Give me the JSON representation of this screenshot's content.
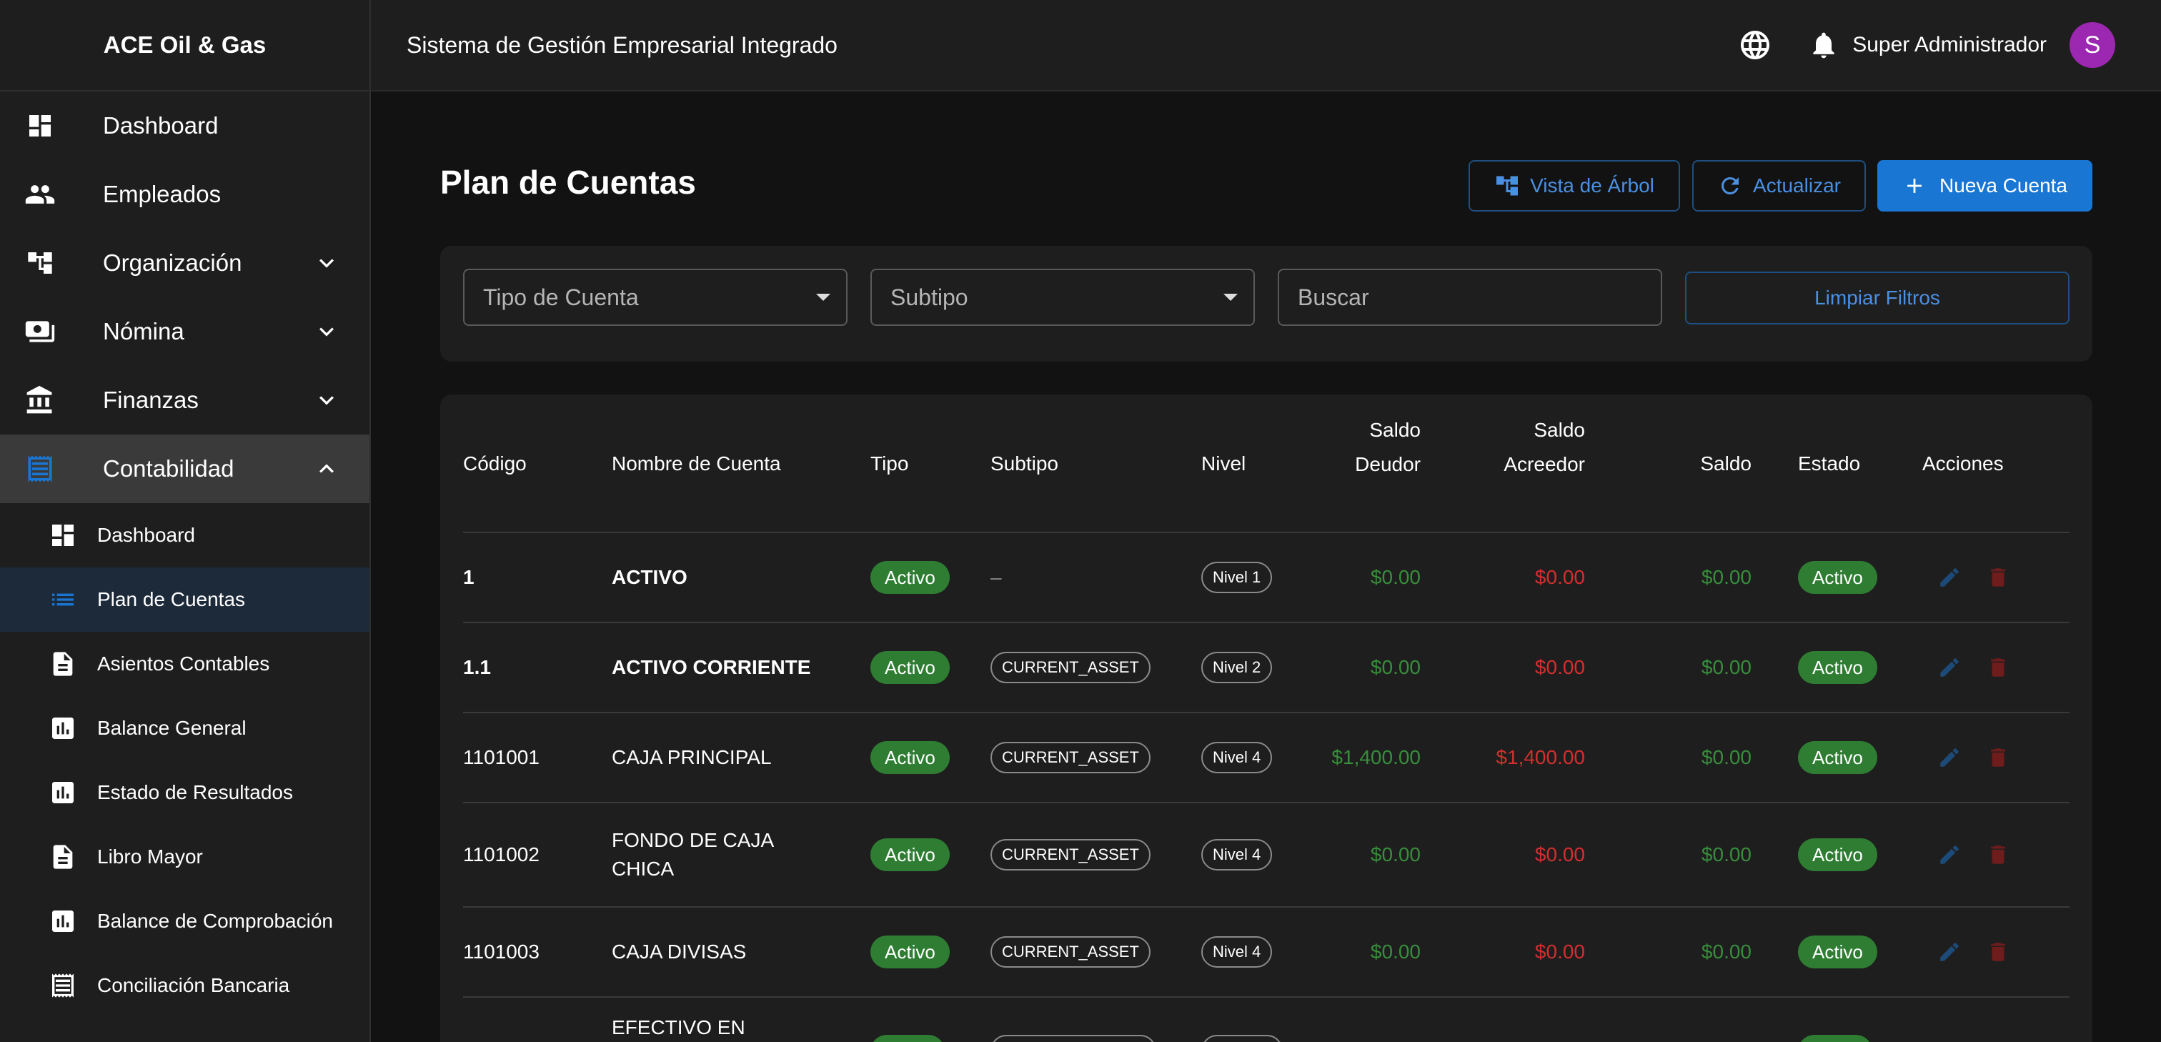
{
  "sidebar": {
    "brand": "ACE Oil & Gas",
    "items": [
      {
        "label": "Dashboard"
      },
      {
        "label": "Empleados"
      },
      {
        "label": "Organización"
      },
      {
        "label": "Nómina"
      },
      {
        "label": "Finanzas"
      },
      {
        "label": "Contabilidad"
      }
    ],
    "subitems": [
      {
        "label": "Dashboard"
      },
      {
        "label": "Plan de Cuentas"
      },
      {
        "label": "Asientos Contables"
      },
      {
        "label": "Balance General"
      },
      {
        "label": "Estado de Resultados"
      },
      {
        "label": "Libro Mayor"
      },
      {
        "label": "Balance de Comprobación"
      },
      {
        "label": "Conciliación Bancaria"
      }
    ]
  },
  "header": {
    "system_title": "Sistema de Gestión Empresarial Integrado",
    "user_name": "Super Administrador",
    "avatar_letter": "S"
  },
  "page": {
    "title": "Plan de Cuentas",
    "buttons": {
      "tree_view": "Vista de Árbol",
      "refresh": "Actualizar",
      "new_account": "Nueva Cuenta"
    }
  },
  "filters": {
    "account_type": "Tipo de Cuenta",
    "subtype": "Subtipo",
    "search": "Buscar",
    "clear": "Limpiar Filtros"
  },
  "table": {
    "headers": {
      "code": "Código",
      "name": "Nombre de Cuenta",
      "type": "Tipo",
      "subtype": "Subtipo",
      "level": "Nivel",
      "debit_1": "Saldo",
      "debit_2": "Deudor",
      "credit_1": "Saldo",
      "credit_2": "Acreedor",
      "balance": "Saldo",
      "status": "Estado",
      "actions": "Acciones"
    },
    "rows": [
      {
        "code": "1",
        "name_1": "ACTIVO",
        "name_2": "",
        "type": "Activo",
        "subtype": "–",
        "level": "Nivel 1",
        "debit": "$0.00",
        "credit": "$0.00",
        "balance": "$0.00",
        "status": "Activo"
      },
      {
        "code": "1.1",
        "name_1": "ACTIVO CORRIENTE",
        "name_2": "",
        "type": "Activo",
        "subtype": "CURRENT_ASSET",
        "level": "Nivel 2",
        "debit": "$0.00",
        "credit": "$0.00",
        "balance": "$0.00",
        "status": "Activo"
      },
      {
        "code": "1101001",
        "name_1": "CAJA PRINCIPAL",
        "name_2": "",
        "type": "Activo",
        "subtype": "CURRENT_ASSET",
        "level": "Nivel 4",
        "debit": "$1,400.00",
        "credit": "$1,400.00",
        "balance": "$0.00",
        "status": "Activo"
      },
      {
        "code": "1101002",
        "name_1": "FONDO DE CAJA",
        "name_2": "CHICA",
        "type": "Activo",
        "subtype": "CURRENT_ASSET",
        "level": "Nivel 4",
        "debit": "$0.00",
        "credit": "$0.00",
        "balance": "$0.00",
        "status": "Activo"
      },
      {
        "code": "1101003",
        "name_1": "CAJA DIVISAS",
        "name_2": "",
        "type": "Activo",
        "subtype": "CURRENT_ASSET",
        "level": "Nivel 4",
        "debit": "$0.00",
        "credit": "$0.00",
        "balance": "$0.00",
        "status": "Activo"
      },
      {
        "code": "",
        "name_1": "EFECTIVO EN",
        "name_2": "",
        "type": "",
        "subtype": "",
        "level": "",
        "debit": "",
        "credit": "",
        "balance": "",
        "status": ""
      }
    ]
  },
  "colors": {
    "accent": "#1976d2",
    "success": "#2e7d32",
    "debit_text": "#388e3c",
    "credit_text": "#d32f2f",
    "avatar": "#9c27b0"
  }
}
